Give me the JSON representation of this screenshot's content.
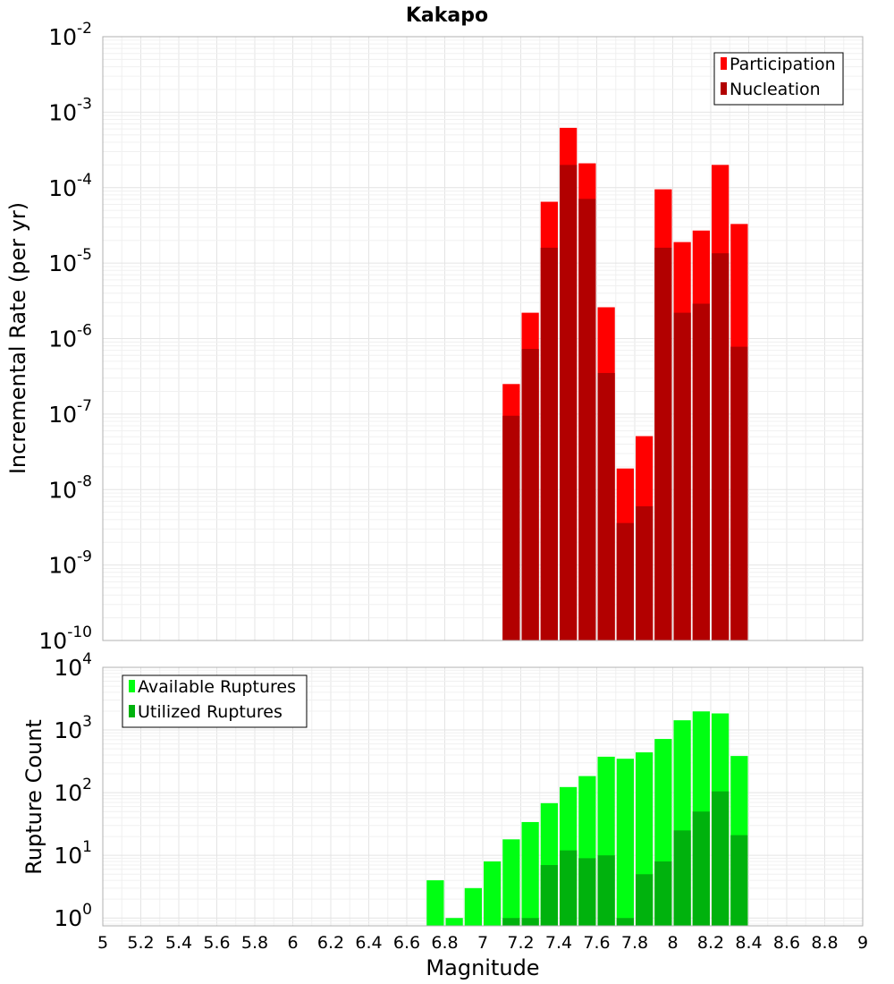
{
  "title": "Kakapo",
  "colors": {
    "participation": "#ff0000",
    "nucleation": "#b20000",
    "available": "#00ff12",
    "utilized": "#00b20d"
  },
  "chart_data": [
    {
      "type": "bar",
      "title": "Kakapo",
      "xlabel": "Magnitude",
      "ylabel": "Incremental Rate (per yr)",
      "yscale": "log",
      "xlim": [
        5,
        9
      ],
      "ylim": [
        1e-10,
        0.01
      ],
      "y_tick_exponents": [
        -10,
        -9,
        -8,
        -7,
        -6,
        -5,
        -4,
        -3,
        -2
      ],
      "grid": true,
      "legend_placement": "top-right",
      "bin_width": 0.1,
      "x": [
        7.15,
        7.25,
        7.35,
        7.45,
        7.55,
        7.65,
        7.75,
        7.85,
        7.95,
        8.05,
        8.15,
        8.25,
        8.35
      ],
      "series": [
        {
          "name": "Participation",
          "values": [
            2.5e-07,
            2.2e-06,
            6.5e-05,
            0.00062,
            0.00021,
            2.6e-06,
            1.9e-08,
            5.1e-08,
            9.5e-05,
            1.9e-05,
            2.7e-05,
            0.0002,
            3.3e-05
          ]
        },
        {
          "name": "Nucleation",
          "values": [
            9.5e-08,
            7.3e-07,
            1.6e-05,
            0.0002,
            7.1e-05,
            3.5e-07,
            3.6e-09,
            6e-09,
            1.6e-05,
            2.2e-06,
            2.9e-06,
            1.35e-05,
            7.8e-07
          ]
        }
      ]
    },
    {
      "type": "bar",
      "xlabel": "Magnitude",
      "ylabel": "Rupture Count",
      "yscale": "log",
      "xlim": [
        5,
        9
      ],
      "ylim": [
        0.75,
        10000
      ],
      "y_tick_exponents": [
        0,
        1,
        2,
        3,
        4
      ],
      "x_ticks": [
        "5",
        "5.2",
        "5.4",
        "5.6",
        "5.8",
        "6",
        "6.2",
        "6.4",
        "6.6",
        "6.8",
        "7",
        "7.2",
        "7.4",
        "7.6",
        "7.8",
        "8",
        "8.2",
        "8.4",
        "8.6",
        "8.8",
        "9"
      ],
      "grid": true,
      "legend_placement": "top-left",
      "bin_width": 0.1,
      "x": [
        6.75,
        6.85,
        6.95,
        7.05,
        7.15,
        7.25,
        7.35,
        7.45,
        7.55,
        7.65,
        7.75,
        7.85,
        7.95,
        8.05,
        8.15,
        8.25,
        8.35
      ],
      "series": [
        {
          "name": "Available Ruptures",
          "values": [
            4,
            1,
            3,
            8,
            18,
            34,
            68,
            123,
            184,
            375,
            348,
            440,
            720,
            1430,
            1980,
            1840,
            385
          ]
        },
        {
          "name": "Utilized Ruptures",
          "values": [
            null,
            null,
            null,
            null,
            1,
            1,
            7,
            12,
            9,
            10,
            1,
            5,
            8,
            25,
            50,
            105,
            21
          ]
        }
      ]
    }
  ]
}
